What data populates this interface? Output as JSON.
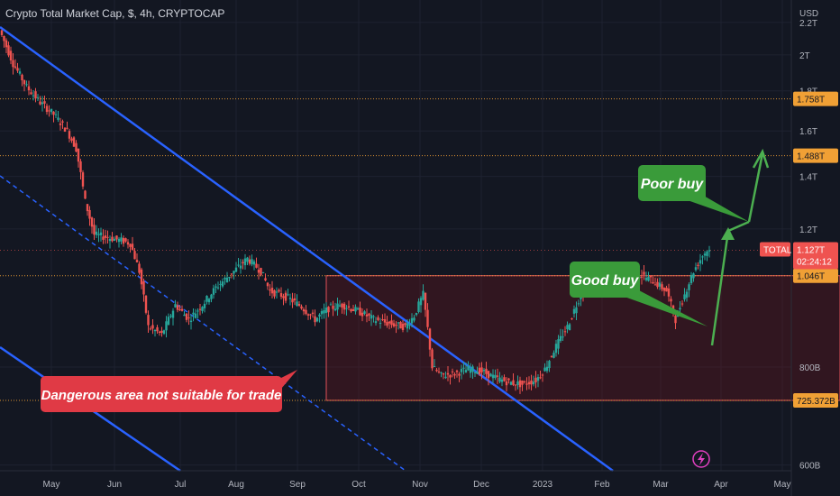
{
  "header": {
    "title": "Crypto Total Market Cap, $, 4h, CRYPTOCAP"
  },
  "colors": {
    "bg": "#131722",
    "up": "#26a69a",
    "down": "#ef5350",
    "channel": "#2962ff",
    "level": "#f0a035",
    "zone": "#e0535a",
    "callout": "#3a9b3a",
    "danger": "#e03a45"
  },
  "chart_data": {
    "type": "candlestick",
    "title": "Crypto Total Market Cap, $, 4h, CRYPTOCAP",
    "currency_label": "USD",
    "symbol": "TOTAL",
    "x_ticks": [
      "May",
      "Jun",
      "Jul",
      "Aug",
      "Sep",
      "Oct",
      "Nov",
      "Dec",
      "2023",
      "Feb",
      "Mar",
      "Apr",
      "May"
    ],
    "y_scale": "log",
    "y_range": [
      590000000000,
      2350000000000
    ],
    "y_ticks": [
      {
        "label": "2.2T",
        "value": 2200000000000
      },
      {
        "label": "2T",
        "value": 2000000000000
      },
      {
        "label": "1.8T",
        "value": 1800000000000
      },
      {
        "label": "1.6T",
        "value": 1600000000000
      },
      {
        "label": "1.4T",
        "value": 1400000000000
      },
      {
        "label": "1.2T",
        "value": 1200000000000
      },
      {
        "label": "800B",
        "value": 800000000000
      },
      {
        "label": "600B",
        "value": 600000000000
      }
    ],
    "price_levels": [
      {
        "label": "1.758T",
        "value": 1758000000000
      },
      {
        "label": "1.488T",
        "value": 1488000000000
      },
      {
        "label": "1.046T",
        "value": 1046000000000
      },
      {
        "label": "725.372B",
        "value": 725372000000
      }
    ],
    "current_price": {
      "symbol": "TOTAL",
      "price": "1.127T",
      "countdown": "02:24:12"
    },
    "series_path": [
      [
        0,
        2150
      ],
      [
        3,
        1950
      ],
      [
        6,
        1820
      ],
      [
        9,
        1740
      ],
      [
        12,
        1680
      ],
      [
        15,
        1600
      ],
      [
        17,
        1520
      ],
      [
        19,
        1300
      ],
      [
        21,
        1180
      ],
      [
        24,
        1170
      ],
      [
        27,
        1160
      ],
      [
        29,
        1150
      ],
      [
        31,
        1060
      ],
      [
        33,
        900
      ],
      [
        36,
        880
      ],
      [
        39,
        960
      ],
      [
        42,
        920
      ],
      [
        45,
        960
      ],
      [
        48,
        1010
      ],
      [
        52,
        1060
      ],
      [
        55,
        1100
      ],
      [
        58,
        1060
      ],
      [
        60,
        1000
      ],
      [
        62,
        990
      ],
      [
        64,
        980
      ],
      [
        67,
        955
      ],
      [
        70,
        920
      ],
      [
        73,
        950
      ],
      [
        76,
        960
      ],
      [
        80,
        940
      ],
      [
        83,
        920
      ],
      [
        86,
        910
      ],
      [
        88,
        905
      ],
      [
        90,
        900
      ],
      [
        92,
        930
      ],
      [
        94,
        990
      ],
      [
        96,
        800
      ],
      [
        98,
        780
      ],
      [
        101,
        785
      ],
      [
        104,
        795
      ],
      [
        107,
        790
      ],
      [
        110,
        775
      ],
      [
        113,
        765
      ],
      [
        116,
        760
      ],
      [
        119,
        770
      ],
      [
        121,
        795
      ],
      [
        123,
        840
      ],
      [
        126,
        900
      ],
      [
        129,
        990
      ],
      [
        132,
        1020
      ],
      [
        136,
        1060
      ],
      [
        139,
        1040
      ],
      [
        142,
        1050
      ],
      [
        145,
        1030
      ],
      [
        148,
        1000
      ],
      [
        150,
        920
      ],
      [
        152,
        990
      ],
      [
        154,
        1060
      ],
      [
        156,
        1110
      ],
      [
        157,
        1127
      ]
    ],
    "zone": {
      "x_start": 72,
      "x_end": 186,
      "y_top": 1046000000000,
      "y_bottom": 725372000000,
      "note": "Dangerous area not suitable for trade"
    },
    "annotations": [
      {
        "text": "Good buy",
        "kind": "callout"
      },
      {
        "text": "Poor buy",
        "kind": "callout"
      },
      {
        "text": "Dangerous area not suitable for trade",
        "kind": "warning"
      }
    ]
  }
}
